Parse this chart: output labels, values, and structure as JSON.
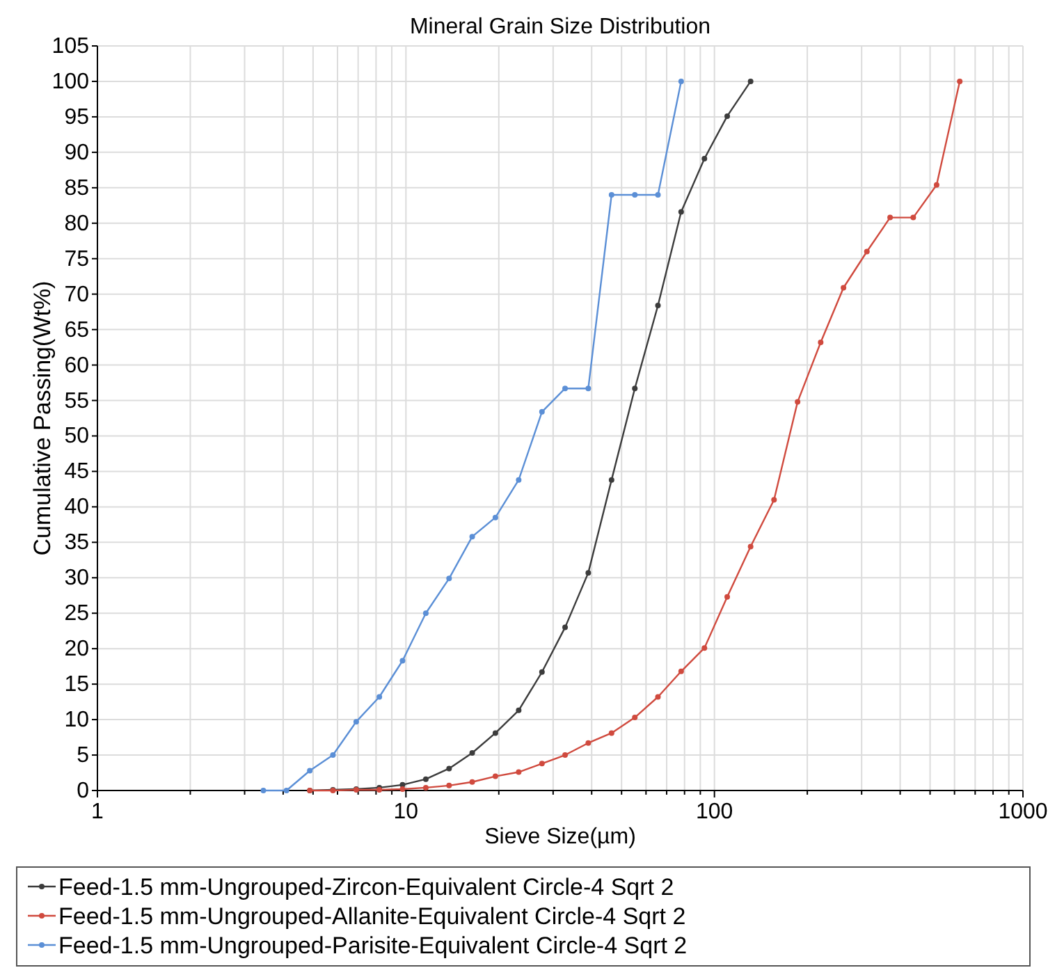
{
  "chart_data": {
    "type": "line",
    "title": "Mineral Grain Size Distribution",
    "xlabel": "Sieve Size(µm)",
    "ylabel": "Cumulative Passing(Wt%)",
    "log": "x",
    "xlim": [
      1,
      1000
    ],
    "xticks": [
      1,
      10,
      100,
      1000
    ],
    "ylim": [
      0,
      105
    ],
    "yticks": [
      0,
      5,
      10,
      15,
      20,
      25,
      30,
      35,
      40,
      45,
      50,
      55,
      60,
      65,
      70,
      75,
      80,
      85,
      90,
      95,
      100,
      105
    ],
    "grid": true,
    "legend": "bottom",
    "marker": "circle",
    "line_style": "solid",
    "series": [
      {
        "name": "Feed-1.5 mm-Ungrouped-Zircon-Equivalent Circle-4 Sqrt 2",
        "color": "#3c3c3c",
        "x": [
          4.88,
          5.8,
          6.9,
          8.2,
          9.75,
          11.6,
          13.8,
          16.4,
          19.5,
          23.2,
          27.6,
          32.8,
          39,
          46.4,
          55.2,
          65.6,
          78,
          92.8,
          110,
          131
        ],
        "values": [
          0,
          0.1,
          0.2,
          0.4,
          0.8,
          1.6,
          3.1,
          5.3,
          8.1,
          11.3,
          16.7,
          23,
          30.7,
          43.8,
          56.7,
          68.4,
          81.6,
          89.1,
          95.1,
          100
        ]
      },
      {
        "name": "Feed-1.5 mm-Ungrouped-Allanite-Equivalent Circle-4 Sqrt 2",
        "color": "#d04a3e",
        "x": [
          4.88,
          5.8,
          6.9,
          8.2,
          9.75,
          11.6,
          13.8,
          16.4,
          19.5,
          23.2,
          27.6,
          32.8,
          39,
          46.4,
          55.2,
          65.6,
          78,
          92.8,
          110,
          131,
          156,
          186,
          221,
          262,
          312,
          371,
          441,
          525,
          624
        ],
        "values": [
          0,
          0,
          0.1,
          0.1,
          0.2,
          0.4,
          0.7,
          1.2,
          2,
          2.6,
          3.8,
          5,
          6.7,
          8.1,
          10.3,
          13.2,
          16.8,
          20.1,
          27.3,
          34.4,
          41,
          54.8,
          63.2,
          70.9,
          76,
          80.8,
          80.8,
          85.4,
          100
        ]
      },
      {
        "name": "Feed-1.5 mm-Ungrouped-Parisite-Equivalent Circle-4 Sqrt 2",
        "color": "#5b8fd6",
        "x": [
          3.45,
          4.1,
          4.88,
          5.8,
          6.9,
          8.2,
          9.75,
          11.6,
          13.8,
          16.4,
          19.5,
          23.2,
          27.6,
          32.8,
          39,
          46.4,
          55.2,
          65.6,
          78
        ],
        "values": [
          0,
          0,
          2.8,
          5,
          9.7,
          13.2,
          18.3,
          25,
          29.9,
          35.8,
          38.5,
          43.8,
          53.4,
          56.7,
          56.7,
          84,
          84,
          84,
          100
        ]
      }
    ]
  }
}
